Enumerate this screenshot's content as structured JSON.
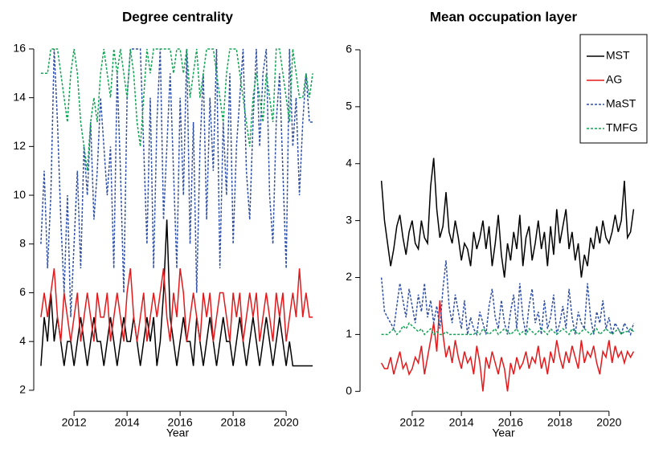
{
  "chart_data": [
    {
      "type": "line",
      "title": "Degree centrality",
      "xlabel": "Year",
      "xlim": [
        2010.48,
        2021.33
      ],
      "ylim": [
        1.37,
        16.69
      ],
      "xticks": [
        2012,
        2014,
        2016,
        2018,
        2020
      ],
      "yticks": [
        2,
        4,
        6,
        8,
        10,
        12,
        14,
        16
      ],
      "legend": false,
      "x": [
        2010.75,
        2010.875,
        2011,
        2011.125,
        2011.25,
        2011.375,
        2011.5,
        2011.625,
        2011.75,
        2011.875,
        2012,
        2012.125,
        2012.25,
        2012.375,
        2012.5,
        2012.625,
        2012.75,
        2012.875,
        2013,
        2013.125,
        2013.25,
        2013.375,
        2013.5,
        2013.625,
        2013.75,
        2013.875,
        2014,
        2014.125,
        2014.25,
        2014.375,
        2014.5,
        2014.625,
        2014.75,
        2014.875,
        2015,
        2015.125,
        2015.25,
        2015.375,
        2015.5,
        2015.625,
        2015.75,
        2015.875,
        2016,
        2016.125,
        2016.25,
        2016.375,
        2016.5,
        2016.625,
        2016.75,
        2016.875,
        2017,
        2017.125,
        2017.25,
        2017.375,
        2017.5,
        2017.625,
        2017.75,
        2017.875,
        2018,
        2018.125,
        2018.25,
        2018.375,
        2018.5,
        2018.625,
        2018.75,
        2018.875,
        2019,
        2019.125,
        2019.25,
        2019.375,
        2019.5,
        2019.625,
        2019.75,
        2019.875,
        2020,
        2020.125,
        2020.25,
        2020.375,
        2020.5,
        2020.625,
        2020.75,
        2020.875,
        2021
      ],
      "series": [
        {
          "color": "#000000",
          "dash": false,
          "values": [
            3,
            5,
            4,
            6,
            4,
            5,
            4,
            3,
            4,
            4,
            3,
            4,
            5,
            4,
            3,
            4,
            5,
            4,
            4,
            3,
            4,
            5,
            4,
            3,
            4,
            5,
            4,
            4,
            5,
            4,
            3,
            4,
            5,
            4,
            5,
            3,
            4,
            6,
            9,
            5,
            4,
            3,
            4,
            5,
            4,
            4,
            3,
            5,
            4,
            3,
            4,
            5,
            4,
            3,
            4,
            5,
            4,
            4,
            3,
            4,
            5,
            4,
            3,
            4,
            5,
            4,
            3,
            4,
            5,
            4,
            3,
            4,
            5,
            4,
            3,
            4,
            3,
            3,
            3,
            3,
            3,
            3,
            3
          ]
        },
        {
          "color": "#e3191c",
          "dash": false,
          "values": [
            5,
            6,
            5,
            6,
            7,
            5,
            4,
            6,
            5,
            4,
            5,
            6,
            4,
            5,
            6,
            5,
            4,
            6,
            5,
            5,
            6,
            4,
            5,
            6,
            5,
            4,
            6,
            7,
            5,
            4,
            5,
            6,
            4,
            5,
            6,
            5,
            6,
            7,
            5,
            4,
            6,
            5,
            7,
            6,
            4,
            5,
            6,
            5,
            4,
            6,
            5,
            6,
            4,
            5,
            6,
            6,
            5,
            4,
            6,
            5,
            6,
            4,
            5,
            6,
            5,
            6,
            4,
            5,
            6,
            5,
            4,
            6,
            5,
            6,
            4,
            5,
            6,
            5,
            7,
            5,
            6,
            5,
            5
          ]
        },
        {
          "color": "#2e4fa3",
          "dash": true,
          "values": [
            8,
            11,
            7,
            10,
            16,
            13,
            9,
            6,
            10,
            5,
            8,
            11,
            7,
            12,
            10,
            13,
            9,
            11,
            14,
            12,
            10,
            12,
            7,
            15,
            11,
            6,
            14,
            16,
            16,
            16,
            16,
            12,
            8,
            14,
            7,
            13,
            16,
            9,
            12,
            15,
            11,
            7,
            14,
            10,
            16,
            8,
            13,
            6,
            12,
            15,
            9,
            14,
            11,
            16,
            7,
            13,
            10,
            15,
            8,
            12,
            14,
            16,
            11,
            9,
            13,
            16,
            12,
            15,
            16,
            10,
            8,
            13,
            15,
            11,
            7,
            16,
            12,
            14,
            10,
            13,
            15,
            13,
            13
          ]
        },
        {
          "color": "#12a354",
          "dash": true,
          "values": [
            15,
            15,
            15,
            16,
            16,
            16,
            15,
            14,
            13,
            15,
            16,
            15,
            13,
            12,
            11,
            13,
            14,
            13,
            15,
            16,
            15,
            14,
            16,
            15,
            16,
            15,
            14,
            16,
            15,
            13,
            12,
            14,
            16,
            15,
            16,
            16,
            16,
            16,
            16,
            16,
            15,
            16,
            16,
            15,
            16,
            14,
            15,
            16,
            14,
            15,
            16,
            16,
            16,
            15,
            14,
            13,
            15,
            16,
            16,
            16,
            15,
            14,
            13,
            12,
            14,
            15,
            14,
            13,
            15,
            14,
            13,
            16,
            16,
            15,
            14,
            13,
            16,
            15,
            14,
            14,
            15,
            14,
            15
          ]
        }
      ]
    },
    {
      "type": "line",
      "title": "Mean occupation layer",
      "xlabel": "Year",
      "xlim": [
        2009.88,
        2021.54
      ],
      "ylim": [
        -0.25,
        6.31
      ],
      "xticks": [
        2012,
        2014,
        2016,
        2018,
        2020
      ],
      "yticks": [
        0,
        1,
        2,
        3,
        4,
        5,
        6
      ],
      "legend": "top-right",
      "x": [
        2010.75,
        2010.875,
        2011,
        2011.125,
        2011.25,
        2011.375,
        2011.5,
        2011.625,
        2011.75,
        2011.875,
        2012,
        2012.125,
        2012.25,
        2012.375,
        2012.5,
        2012.625,
        2012.75,
        2012.875,
        2013,
        2013.125,
        2013.25,
        2013.375,
        2013.5,
        2013.625,
        2013.75,
        2013.875,
        2014,
        2014.125,
        2014.25,
        2014.375,
        2014.5,
        2014.625,
        2014.75,
        2014.875,
        2015,
        2015.125,
        2015.25,
        2015.375,
        2015.5,
        2015.625,
        2015.75,
        2015.875,
        2016,
        2016.125,
        2016.25,
        2016.375,
        2016.5,
        2016.625,
        2016.75,
        2016.875,
        2017,
        2017.125,
        2017.25,
        2017.375,
        2017.5,
        2017.625,
        2017.75,
        2017.875,
        2018,
        2018.125,
        2018.25,
        2018.375,
        2018.5,
        2018.625,
        2018.75,
        2018.875,
        2019,
        2019.125,
        2019.25,
        2019.375,
        2019.5,
        2019.625,
        2019.75,
        2019.875,
        2020,
        2020.125,
        2020.25,
        2020.375,
        2020.5,
        2020.625,
        2020.75,
        2020.875,
        2021
      ],
      "series": [
        {
          "name": "MST",
          "color": "#000000",
          "dash": false,
          "values": [
            3.7,
            3.0,
            2.6,
            2.2,
            2.5,
            2.9,
            3.1,
            2.7,
            2.4,
            2.8,
            3.0,
            2.6,
            2.5,
            3.0,
            2.7,
            2.6,
            3.6,
            4.1,
            3.2,
            2.7,
            2.9,
            3.5,
            2.8,
            2.6,
            3.0,
            2.7,
            2.3,
            2.6,
            2.5,
            2.2,
            2.8,
            2.5,
            2.7,
            3.0,
            2.5,
            2.9,
            2.2,
            2.6,
            3.1,
            2.4,
            2.0,
            2.6,
            2.3,
            2.8,
            2.5,
            3.1,
            2.2,
            2.7,
            2.9,
            2.3,
            2.6,
            3.0,
            2.5,
            2.8,
            2.2,
            2.9,
            2.4,
            3.2,
            2.6,
            2.9,
            3.2,
            2.5,
            2.8,
            2.3,
            2.6,
            2.0,
            2.4,
            2.2,
            2.7,
            2.5,
            2.9,
            2.6,
            3.0,
            2.7,
            2.6,
            2.8,
            3.1,
            2.8,
            3.0,
            3.7,
            2.7,
            2.8,
            3.2
          ]
        },
        {
          "name": "AG",
          "color": "#e3191c",
          "dash": false,
          "values": [
            0.5,
            0.4,
            0.4,
            0.6,
            0.3,
            0.5,
            0.7,
            0.4,
            0.5,
            0.3,
            0.4,
            0.6,
            0.5,
            0.8,
            0.3,
            0.6,
            0.9,
            1.2,
            0.7,
            1.6,
            1.0,
            0.6,
            0.8,
            0.5,
            0.9,
            0.6,
            0.4,
            0.7,
            0.5,
            0.6,
            0.3,
            0.8,
            0.5,
            0.0,
            0.6,
            0.4,
            0.7,
            0.5,
            0.3,
            0.6,
            0.4,
            0.0,
            0.5,
            0.3,
            0.6,
            0.4,
            0.5,
            0.7,
            0.4,
            0.6,
            0.5,
            0.8,
            0.4,
            0.6,
            0.3,
            0.7,
            0.5,
            0.9,
            0.6,
            0.4,
            0.7,
            0.5,
            0.8,
            0.6,
            0.4,
            0.9,
            0.5,
            0.7,
            0.6,
            0.8,
            0.5,
            0.3,
            0.7,
            0.6,
            0.9,
            0.5,
            0.8,
            0.6,
            0.7,
            0.5,
            0.7,
            0.6,
            0.7
          ]
        },
        {
          "name": "MaST",
          "color": "#2e4fa3",
          "dash": true,
          "values": [
            2.0,
            1.4,
            1.3,
            1.2,
            1.1,
            1.5,
            1.9,
            1.6,
            1.3,
            1.8,
            1.5,
            1.2,
            1.7,
            1.4,
            1.9,
            1.3,
            1.6,
            1.2,
            1.5,
            1.1,
            1.8,
            2.3,
            1.5,
            1.2,
            1.7,
            1.4,
            1.1,
            1.6,
            1.0,
            1.3,
            1.1,
            1.0,
            1.4,
            1.2,
            1.0,
            1.5,
            1.8,
            1.3,
            1.1,
            1.6,
            1.2,
            1.0,
            1.4,
            1.7,
            1.1,
            1.9,
            1.3,
            1.0,
            1.5,
            1.8,
            1.2,
            1.4,
            1.0,
            1.6,
            1.1,
            1.3,
            1.7,
            1.0,
            1.2,
            1.5,
            1.1,
            1.8,
            1.3,
            1.0,
            1.4,
            1.2,
            1.1,
            1.9,
            1.3,
            1.0,
            1.4,
            1.2,
            1.6,
            1.1,
            1.3,
            1.0,
            1.2,
            1.1,
            1.0,
            1.2,
            1.1,
            1.0,
            1.2
          ]
        },
        {
          "name": "TMFG",
          "color": "#12a354",
          "dash": true,
          "values": [
            1.0,
            1.0,
            1.0,
            1.05,
            1.1,
            1.0,
            1.05,
            1.15,
            1.1,
            1.2,
            1.15,
            1.1,
            1.05,
            1.1,
            1.0,
            1.05,
            1.1,
            1.0,
            1.05,
            1.0,
            1.0,
            1.05,
            1.0,
            1.0,
            1.0,
            1.0,
            1.0,
            1.0,
            1.0,
            1.0,
            1.0,
            1.05,
            1.0,
            1.1,
            1.05,
            1.0,
            1.05,
            1.1,
            1.0,
            1.05,
            1.1,
            1.05,
            1.0,
            1.05,
            1.1,
            1.0,
            1.05,
            1.0,
            1.1,
            1.05,
            1.0,
            1.05,
            1.1,
            1.05,
            1.0,
            1.1,
            1.05,
            1.0,
            1.05,
            1.1,
            1.05,
            1.0,
            1.1,
            1.05,
            1.0,
            1.05,
            1.1,
            1.05,
            1.0,
            1.05,
            1.1,
            1.0,
            1.05,
            1.1,
            1.05,
            1.0,
            1.05,
            1.1,
            1.0,
            1.05,
            1.05,
            1.1,
            1.05
          ]
        }
      ]
    }
  ]
}
